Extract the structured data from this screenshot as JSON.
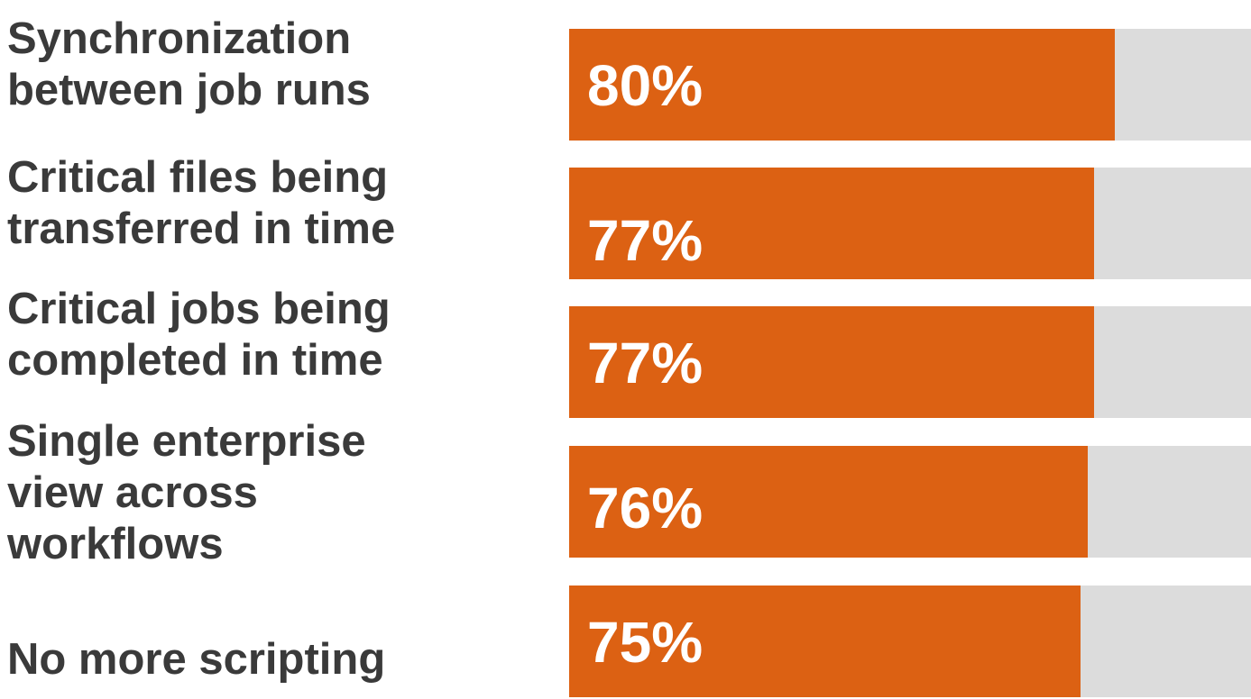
{
  "chart_data": {
    "type": "bar",
    "orientation": "horizontal",
    "categories": [
      "Synchronization\nbetween job runs",
      "Critical files being\ntransferred in time",
      "Critical jobs being\ncompleted in time",
      "Single enterprise\nview across\nworkflows",
      "No more scripting"
    ],
    "values": [
      80,
      77,
      77,
      76,
      75
    ],
    "value_labels": [
      "80%",
      "77%",
      "77%",
      "76%",
      "75%"
    ],
    "xlim": [
      0,
      100
    ],
    "unit": "%",
    "grid": false,
    "colors": {
      "bar": "#dc6113",
      "track": "#dcdcdc",
      "label": "#3a3a3a",
      "value_text": "#ffffff"
    }
  }
}
